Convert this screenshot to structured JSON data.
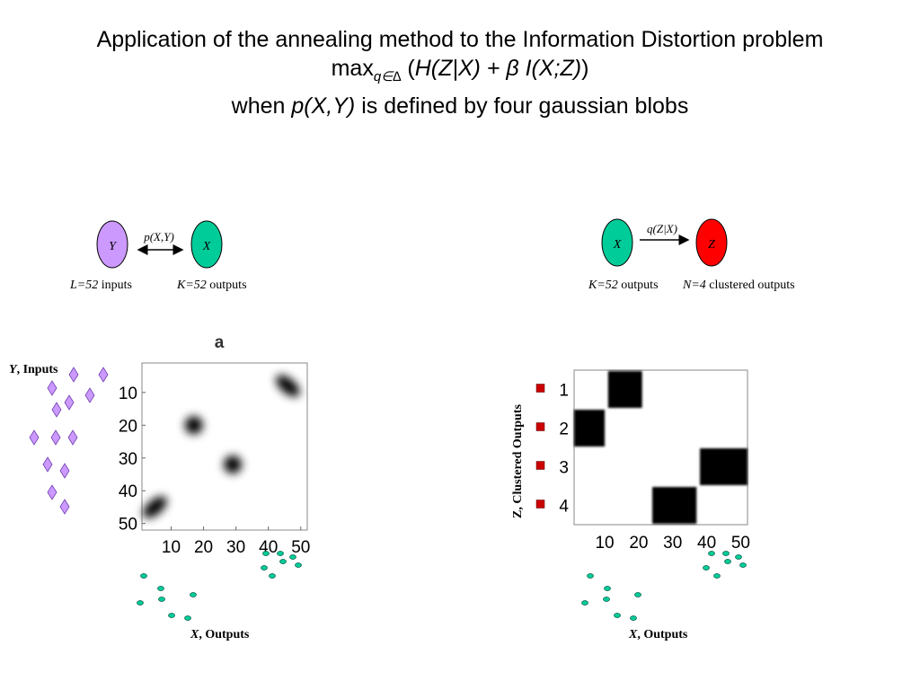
{
  "title": {
    "line1": "Application of the annealing method to the Information Distortion problem",
    "max": "max",
    "max_sub": "q∈∆",
    "formula_open": " (",
    "formula_a": "H(Z|X) + ",
    "formula_beta": "β",
    "formula_b": " I(X;Z)",
    "formula_close": ")",
    "line3_a": "when ",
    "line3_b": "p(X,Y)",
    "line3_c": " is defined by four gaussian blobs"
  },
  "left_diagram": {
    "node_y": "Y",
    "node_x": "X",
    "arrow_label": "p(X,Y)",
    "node_y_color": "#cc99ff",
    "node_x_color": "#00cc99",
    "caption_l_var": "L=52",
    "caption_l_text": " inputs",
    "caption_k_var": "K=52",
    "caption_k_text": " outputs"
  },
  "right_diagram": {
    "node_x": "X",
    "node_z": "Z",
    "arrow_label": "q(Z|X)",
    "node_x_color": "#00cc99",
    "node_z_color": "#ff0000",
    "caption_k_var": "K=52",
    "caption_k_text": " outputs",
    "caption_n_var": "N=4",
    "caption_n_text": " clustered outputs"
  },
  "left_plot": {
    "panel_label": "a",
    "y_label_var": "Y",
    "y_label_text": ", Inputs",
    "x_label_var": "X",
    "x_label_text": ", Outputs",
    "diamond_color": "#cc99ff",
    "dot_color": "#00cc99"
  },
  "right_plot": {
    "y_label": "Z, Clustered Outputs",
    "x_label_var": "X",
    "x_label_text": ", Outputs",
    "square_color": "#cc0000",
    "dot_color": "#00cc99"
  },
  "chart_data": [
    {
      "type": "heatmap",
      "title": "a",
      "x_ticks": [
        10,
        20,
        30,
        40,
        50
      ],
      "y_ticks": [
        10,
        20,
        30,
        40,
        50
      ],
      "xlim": [
        1,
        52
      ],
      "ylim": [
        1,
        52
      ],
      "blobs": [
        {
          "x": 46,
          "y": 8,
          "elongated": true
        },
        {
          "x": 17,
          "y": 20,
          "elongated": false
        },
        {
          "x": 29,
          "y": 32,
          "elongated": false
        },
        {
          "x": 5,
          "y": 45,
          "elongated": true
        }
      ]
    },
    {
      "type": "heatmap",
      "x_ticks": [
        10,
        20,
        30,
        40,
        50
      ],
      "y_ticks": [
        1,
        2,
        3,
        4
      ],
      "xlim": [
        1,
        52
      ],
      "ylim": [
        0.5,
        4.5
      ],
      "blocks": [
        {
          "row": 1,
          "x_start": 11,
          "x_end": 21
        },
        {
          "row": 2,
          "x_start": 1,
          "x_end": 10
        },
        {
          "row": 3,
          "x_start": 38,
          "x_end": 52
        },
        {
          "row": 4,
          "x_start": 24,
          "x_end": 37
        }
      ]
    }
  ]
}
